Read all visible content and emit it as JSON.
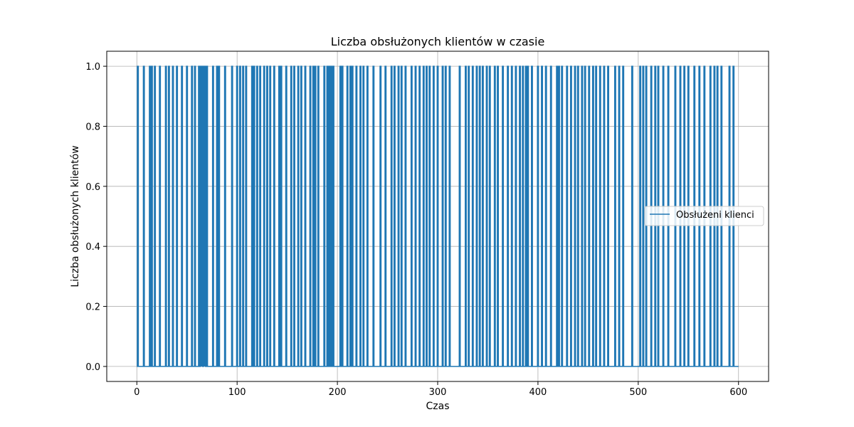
{
  "chart_data": {
    "type": "line",
    "title": "Liczba obsłużonych klientów w czasie",
    "xlabel": "Czas",
    "ylabel": "Liczba obsłużonych klientów",
    "xlim": [
      -30,
      630
    ],
    "ylim": [
      -0.05,
      1.05
    ],
    "xticks": [
      0,
      100,
      200,
      300,
      400,
      500,
      600
    ],
    "xtick_labels": [
      "0",
      "100",
      "200",
      "300",
      "400",
      "500",
      "600"
    ],
    "yticks": [
      0.0,
      0.2,
      0.4,
      0.6,
      0.8,
      1.0
    ],
    "ytick_labels": [
      "0.0",
      "0.2",
      "0.4",
      "0.6",
      "0.8",
      "1.0"
    ],
    "grid": true,
    "legend_position": "center-right",
    "series": [
      {
        "name": "Obsłużeni klienci",
        "color": "#1f77b4",
        "x_range": [
          0,
          600
        ],
        "y_values": [
          0,
          1
        ],
        "spike_times": [
          1,
          7,
          13,
          15,
          18,
          23,
          29,
          32,
          36,
          40,
          45,
          50,
          55,
          58,
          62,
          64,
          65,
          67,
          68,
          70,
          76,
          80,
          82,
          88,
          95,
          100,
          103,
          106,
          109,
          115,
          117,
          120,
          123,
          127,
          130,
          133,
          137,
          142,
          144,
          149,
          154,
          157,
          161,
          164,
          168,
          173,
          176,
          178,
          181,
          187,
          190,
          192,
          194,
          196,
          203,
          205,
          210,
          213,
          215,
          219,
          223,
          226,
          230,
          236,
          243,
          248,
          254,
          257,
          261,
          264,
          268,
          274,
          278,
          282,
          286,
          289,
          292,
          296,
          300,
          305,
          308,
          312,
          322,
          328,
          331,
          335,
          339,
          342,
          345,
          349,
          352,
          357,
          360,
          365,
          370,
          374,
          378,
          382,
          385,
          388,
          390,
          394,
          400,
          404,
          408,
          413,
          419,
          421,
          424,
          429,
          433,
          437,
          440,
          444,
          447,
          451,
          455,
          458,
          462,
          466,
          470,
          477,
          481,
          485,
          494,
          502,
          505,
          508,
          513,
          517,
          520,
          525,
          530,
          537,
          542,
          546,
          550,
          556,
          561,
          566,
          572,
          576,
          579,
          583,
          591,
          595
        ]
      }
    ]
  }
}
